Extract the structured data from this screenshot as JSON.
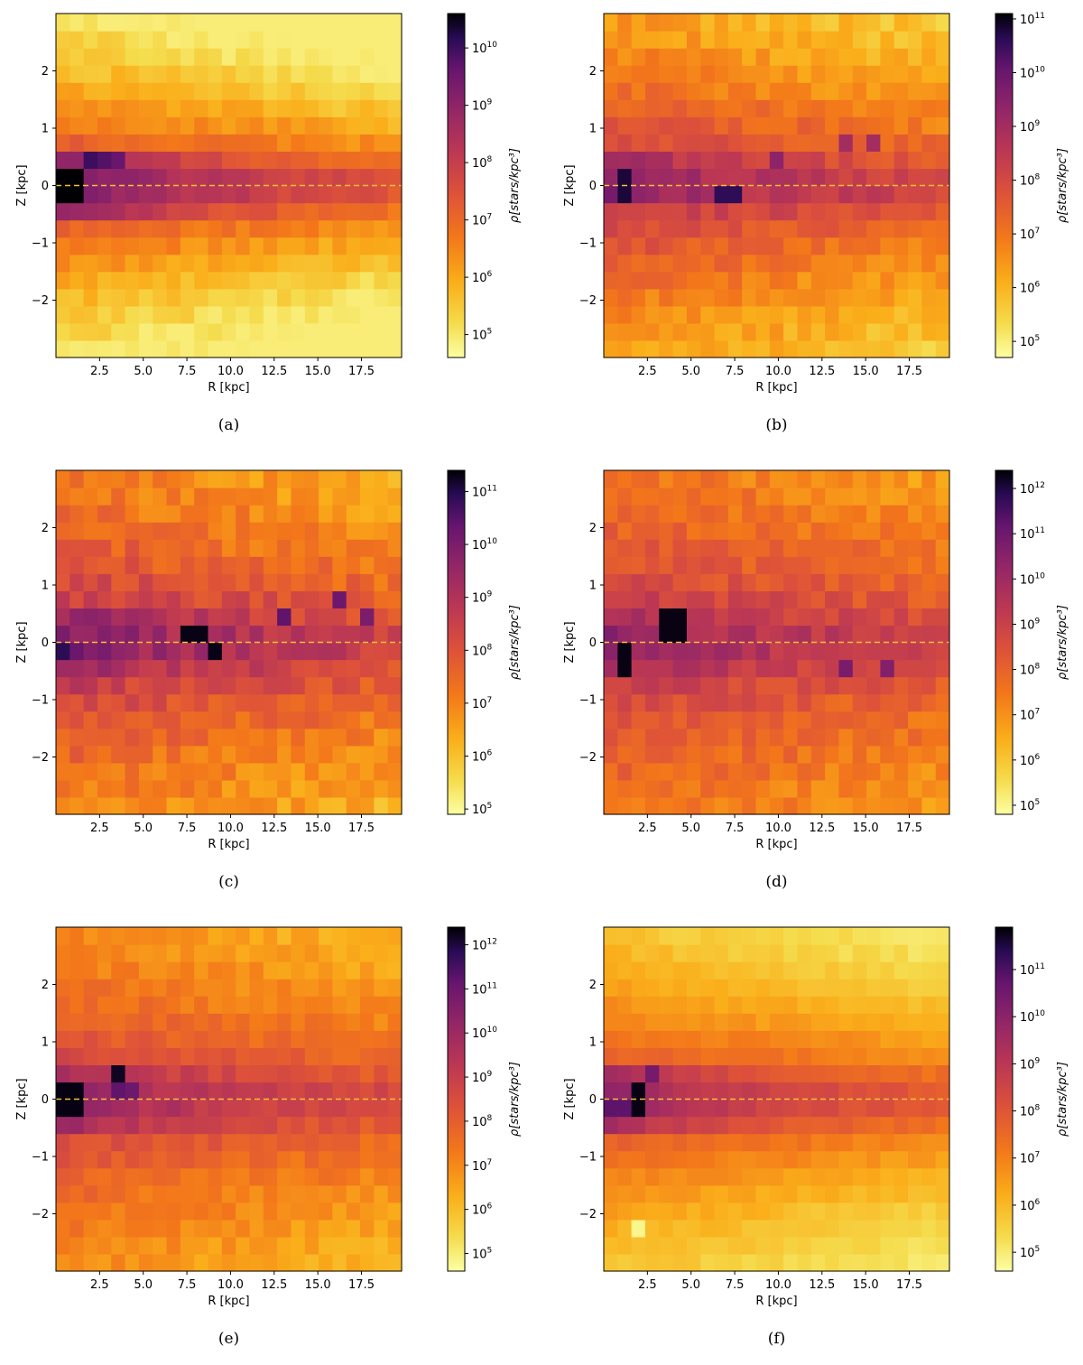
{
  "colors": {
    "colormap": "inferno_r",
    "midplane_line": "#f5c23a",
    "axis": "#000000"
  },
  "chart_data": [
    {
      "panel_label": "(a)",
      "type": "heatmap",
      "xlabel": "R [kpc]",
      "ylabel": "Z [kpc]",
      "xlim": [
        0,
        19.8
      ],
      "ylim": [
        -3,
        3
      ],
      "xticks": [
        "2.5",
        "5.0",
        "7.5",
        "10.0",
        "12.5",
        "15.0",
        "17.5"
      ],
      "yticks": [
        "2",
        "1",
        "0",
        "−1",
        "−2"
      ],
      "colorbar_label": "ρ[stars/kpc³]",
      "colorbar_range_log10": [
        4.6,
        10.6
      ],
      "colorbar_ticks": [
        {
          "base": "10",
          "exp": "5"
        },
        {
          "base": "10",
          "exp": "6"
        },
        {
          "base": "10",
          "exp": "7"
        },
        {
          "base": "10",
          "exp": "8"
        },
        {
          "base": "10",
          "exp": "9"
        },
        {
          "base": "10",
          "exp": "10"
        }
      ],
      "midplane_z": 0,
      "density_model": {
        "peak_log10": 10.5,
        "center_log10": 8.6,
        "falloff_per_kpc": 2.4,
        "scale_height": 0.55,
        "floor_log10": 4.9,
        "noise": 0.25,
        "seed": 11
      },
      "hot_cells": [
        {
          "r": 0.4,
          "z": -0.3,
          "v": 10.6
        },
        {
          "r": 1.2,
          "z": -0.3,
          "v": 10.6
        },
        {
          "r": 0.4,
          "z": 0.0,
          "v": 10.6
        },
        {
          "r": 1.2,
          "z": 0.0,
          "v": 10.6
        },
        {
          "r": 2.0,
          "z": 0.3,
          "v": 10.0
        },
        {
          "r": 2.8,
          "z": 0.3,
          "v": 9.8
        },
        {
          "r": 3.6,
          "z": 0.3,
          "v": 9.6
        }
      ]
    },
    {
      "panel_label": "(b)",
      "type": "heatmap",
      "xlabel": "R [kpc]",
      "ylabel": "Z [kpc]",
      "xlim": [
        0,
        19.8
      ],
      "ylim": [
        -3,
        3
      ],
      "xticks": [
        "2.5",
        "5.0",
        "7.5",
        "10.0",
        "12.5",
        "15.0",
        "17.5"
      ],
      "yticks": [
        "2",
        "1",
        "0",
        "−1",
        "−2"
      ],
      "colorbar_label": "ρ[stars/kpc³]",
      "colorbar_range_log10": [
        4.7,
        11.1
      ],
      "colorbar_ticks": [
        {
          "base": "10",
          "exp": "5"
        },
        {
          "base": "10",
          "exp": "6"
        },
        {
          "base": "10",
          "exp": "7"
        },
        {
          "base": "10",
          "exp": "8"
        },
        {
          "base": "10",
          "exp": "9"
        },
        {
          "base": "10",
          "exp": "10"
        },
        {
          "base": "10",
          "exp": "11"
        }
      ],
      "midplane_z": 0,
      "density_model": {
        "peak_log10": 10.0,
        "center_log10": 9.2,
        "falloff_per_kpc": 1.9,
        "scale_height": 0.45,
        "floor_log10": 5.0,
        "noise": 0.35,
        "seed": 23
      },
      "hot_cells": [
        {
          "r": 1.2,
          "z": 0.0,
          "v": 10.8
        },
        {
          "r": 1.2,
          "z": -0.3,
          "v": 10.8
        },
        {
          "r": 6.8,
          "z": -0.3,
          "v": 10.6
        },
        {
          "r": 7.6,
          "z": -0.3,
          "v": 10.6
        },
        {
          "r": 10.0,
          "z": 0.3,
          "v": 9.4
        },
        {
          "r": 14.0,
          "z": 0.6,
          "v": 9.0
        },
        {
          "r": 15.6,
          "z": 0.6,
          "v": 9.0
        }
      ]
    },
    {
      "panel_label": "(c)",
      "type": "heatmap",
      "xlabel": "R [kpc]",
      "ylabel": "Z [kpc]",
      "xlim": [
        0,
        19.8
      ],
      "ylim": [
        -3,
        3
      ],
      "xticks": [
        "2.5",
        "5.0",
        "7.5",
        "10.0",
        "12.5",
        "15.0",
        "17.5"
      ],
      "yticks": [
        "2",
        "1",
        "0",
        "−1",
        "−2"
      ],
      "colorbar_label": "ρ[stars/kpc³]",
      "colorbar_range_log10": [
        4.9,
        11.4
      ],
      "colorbar_ticks": [
        {
          "base": "10",
          "exp": "5"
        },
        {
          "base": "10",
          "exp": "6"
        },
        {
          "base": "10",
          "exp": "7"
        },
        {
          "base": "10",
          "exp": "8"
        },
        {
          "base": "10",
          "exp": "9"
        },
        {
          "base": "10",
          "exp": "10"
        },
        {
          "base": "10",
          "exp": "11"
        }
      ],
      "midplane_z": 0,
      "density_model": {
        "peak_log10": 10.4,
        "center_log10": 9.6,
        "falloff_per_kpc": 1.7,
        "scale_height": 0.5,
        "floor_log10": 5.0,
        "noise": 0.45,
        "seed": 37
      },
      "hot_cells": [
        {
          "r": 7.6,
          "z": 0.0,
          "v": 11.3
        },
        {
          "r": 8.4,
          "z": 0.0,
          "v": 11.3
        },
        {
          "r": 9.2,
          "z": -0.3,
          "v": 11.3
        },
        {
          "r": 0.4,
          "z": -0.3,
          "v": 10.9
        },
        {
          "r": 13.2,
          "z": 0.3,
          "v": 10.4
        },
        {
          "r": 16.0,
          "z": 0.6,
          "v": 10.2
        },
        {
          "r": 18.0,
          "z": 0.3,
          "v": 10.0
        }
      ]
    },
    {
      "panel_label": "(d)",
      "type": "heatmap",
      "xlabel": "R [kpc]",
      "ylabel": "Z [kpc]",
      "xlim": [
        0,
        19.8
      ],
      "ylim": [
        -3,
        3
      ],
      "xticks": [
        "2.5",
        "5.0",
        "7.5",
        "10.0",
        "12.5",
        "15.0",
        "17.5"
      ],
      "yticks": [
        "2",
        "1",
        "0",
        "−1",
        "−2"
      ],
      "colorbar_label": "ρ[stars/kpc³]",
      "colorbar_range_log10": [
        4.8,
        12.4
      ],
      "colorbar_ticks": [
        {
          "base": "10",
          "exp": "5"
        },
        {
          "base": "10",
          "exp": "6"
        },
        {
          "base": "10",
          "exp": "7"
        },
        {
          "base": "10",
          "exp": "8"
        },
        {
          "base": "10",
          "exp": "9"
        },
        {
          "base": "10",
          "exp": "10"
        },
        {
          "base": "10",
          "exp": "11"
        },
        {
          "base": "10",
          "exp": "12"
        }
      ],
      "midplane_z": 0,
      "density_model": {
        "peak_log10": 10.8,
        "center_log10": 10.0,
        "falloff_per_kpc": 1.6,
        "scale_height": 0.5,
        "floor_log10": 5.0,
        "noise": 0.45,
        "seed": 53
      },
      "hot_cells": [
        {
          "r": 3.6,
          "z": 0.3,
          "v": 12.3
        },
        {
          "r": 4.4,
          "z": 0.3,
          "v": 12.3
        },
        {
          "r": 3.6,
          "z": 0.0,
          "v": 12.3
        },
        {
          "r": 4.4,
          "z": 0.0,
          "v": 12.3
        },
        {
          "r": 1.2,
          "z": -0.3,
          "v": 12.3
        },
        {
          "r": 1.2,
          "z": -0.6,
          "v": 12.3
        },
        {
          "r": 14.0,
          "z": -0.6,
          "v": 10.8
        },
        {
          "r": 16.4,
          "z": -0.6,
          "v": 10.6
        }
      ]
    },
    {
      "panel_label": "(e)",
      "type": "heatmap",
      "xlabel": "R [kpc]",
      "ylabel": "Z [kpc]",
      "xlim": [
        0,
        19.8
      ],
      "ylim": [
        -3,
        3
      ],
      "xticks": [
        "2.5",
        "5.0",
        "7.5",
        "10.0",
        "12.5",
        "15.0",
        "17.5"
      ],
      "yticks": [
        "2",
        "1",
        "0",
        "−1",
        "−2"
      ],
      "colorbar_label": "ρ[stars/kpc³]",
      "colorbar_range_log10": [
        4.6,
        12.4
      ],
      "colorbar_ticks": [
        {
          "base": "10",
          "exp": "5"
        },
        {
          "base": "10",
          "exp": "6"
        },
        {
          "base": "10",
          "exp": "7"
        },
        {
          "base": "10",
          "exp": "8"
        },
        {
          "base": "10",
          "exp": "9"
        },
        {
          "base": "10",
          "exp": "10"
        },
        {
          "base": "10",
          "exp": "11"
        },
        {
          "base": "10",
          "exp": "12"
        }
      ],
      "midplane_z": 0,
      "density_model": {
        "peak_log10": 11.0,
        "center_log10": 9.6,
        "falloff_per_kpc": 1.8,
        "scale_height": 0.5,
        "floor_log10": 4.9,
        "noise": 0.35,
        "seed": 71
      },
      "hot_cells": [
        {
          "r": 0.4,
          "z": 0.0,
          "v": 12.3
        },
        {
          "r": 1.2,
          "z": 0.0,
          "v": 12.3
        },
        {
          "r": 0.4,
          "z": -0.3,
          "v": 12.3
        },
        {
          "r": 1.2,
          "z": -0.3,
          "v": 12.3
        },
        {
          "r": 3.6,
          "z": 0.3,
          "v": 12.2
        },
        {
          "r": 3.6,
          "z": 0.0,
          "v": 11.2
        },
        {
          "r": 4.4,
          "z": 0.0,
          "v": 11.0
        }
      ]
    },
    {
      "panel_label": "(f)",
      "type": "heatmap",
      "xlabel": "R [kpc]",
      "ylabel": "Z [kpc]",
      "xlim": [
        0,
        19.8
      ],
      "ylim": [
        -3,
        3
      ],
      "xticks": [
        "2.5",
        "5.0",
        "7.5",
        "10.0",
        "12.5",
        "15.0",
        "17.5"
      ],
      "yticks": [
        "2",
        "1",
        "0",
        "−1",
        "−2"
      ],
      "colorbar_label": "ρ[stars/kpc³]",
      "colorbar_range_log10": [
        4.6,
        11.9
      ],
      "colorbar_ticks": [
        {
          "base": "10",
          "exp": "5"
        },
        {
          "base": "10",
          "exp": "6"
        },
        {
          "base": "10",
          "exp": "7"
        },
        {
          "base": "10",
          "exp": "8"
        },
        {
          "base": "10",
          "exp": "9"
        },
        {
          "base": "10",
          "exp": "10"
        },
        {
          "base": "10",
          "exp": "11"
        }
      ],
      "midplane_z": 0,
      "density_model": {
        "peak_log10": 10.8,
        "center_log10": 9.0,
        "falloff_per_kpc": 2.2,
        "scale_height": 0.55,
        "floor_log10": 5.0,
        "noise": 0.2,
        "seed": 89
      },
      "hot_cells": [
        {
          "r": 2.0,
          "z": -0.3,
          "v": 11.8
        },
        {
          "r": 2.0,
          "z": 0.0,
          "v": 11.8
        },
        {
          "r": 0.4,
          "z": -0.3,
          "v": 10.8
        },
        {
          "r": 1.2,
          "z": -0.3,
          "v": 10.8
        },
        {
          "r": 2.8,
          "z": 0.3,
          "v": 10.4
        },
        {
          "r": 1.6,
          "z": -2.2,
          "v": 4.8
        }
      ]
    }
  ]
}
